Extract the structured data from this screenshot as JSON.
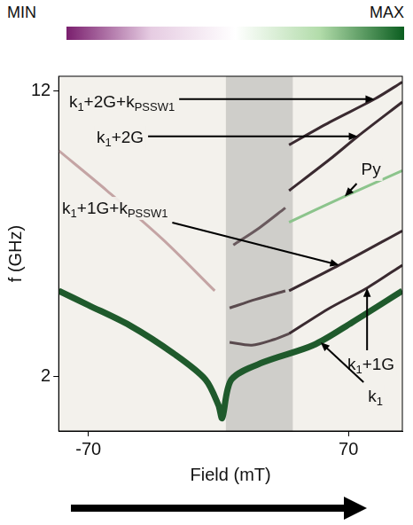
{
  "chart_data": {
    "type": "line",
    "colorbar": {
      "labels": [
        "MIN",
        "MAX"
      ],
      "colors": [
        "#7a1f6e",
        "#e6cce2",
        "#ffffff",
        "#b2dcaa",
        "#0b5e20"
      ]
    },
    "x_label": "Field (mT)",
    "y_label": "f (GHz)",
    "xlim": [
      -86,
      99
    ],
    "xticks": [
      -70,
      70
    ],
    "ylim": [
      0.1,
      12.5
    ],
    "yticks": [
      2,
      12
    ],
    "grid": false,
    "shaded_x": [
      4,
      40
    ],
    "series": [
      {
        "color": "#1f5a2c",
        "x": [
          -86,
          -70,
          -48,
          -24,
          -7,
          0,
          2,
          7,
          24,
          51,
          72,
          99
        ],
        "values": [
          5.0,
          4.5,
          3.8,
          2.8,
          1.9,
          1.0,
          0.55,
          1.9,
          2.5,
          3.1,
          3.9,
          5.0
        ]
      },
      {
        "color": "#3a2a30",
        "x": [
          38,
          60,
          80,
          99
        ],
        "values": [
          3.5,
          4.4,
          5.1,
          5.9
        ]
      },
      {
        "color": "#3a2a30",
        "x": [
          38,
          65,
          99
        ],
        "values": [
          5.0,
          5.9,
          7.1
        ]
      },
      {
        "color": "#8cc48c",
        "x": [
          38,
          68,
          99
        ],
        "values": [
          7.4,
          8.3,
          9.2
        ]
      },
      {
        "color": "#3a2a30",
        "x": [
          38,
          60,
          75,
          99
        ],
        "values": [
          8.5,
          9.6,
          10.4,
          11.6
        ]
      },
      {
        "color": "#3a2a30",
        "x": [
          38,
          60,
          84,
          99
        ],
        "values": [
          10.1,
          10.9,
          11.7,
          12.3
        ]
      },
      {
        "color": "#c4a4a4",
        "x": [
          -86,
          -60,
          -30,
          -2
        ],
        "values": [
          9.9,
          8.5,
          6.8,
          5.0
        ]
      },
      {
        "color": "#5a4a4e",
        "x": [
          6,
          18,
          30,
          38
        ],
        "values": [
          3.2,
          3.1,
          3.3,
          3.5
        ]
      },
      {
        "color": "#5a4a4e",
        "x": [
          6,
          20,
          36
        ],
        "values": [
          4.4,
          4.7,
          5.0
        ]
      },
      {
        "color": "#6a5a5e",
        "x": [
          8,
          22,
          36
        ],
        "values": [
          6.6,
          7.2,
          7.9
        ]
      }
    ],
    "annotations": [
      {
        "text": "k1+2G+kPSSW1",
        "arrow_to": [
          84,
          11.7
        ]
      },
      {
        "text": "k1+2G",
        "arrow_to": [
          75,
          10.4
        ]
      },
      {
        "text": "k1+1G+kPSSW1",
        "arrow_to": [
          65,
          5.9
        ]
      },
      {
        "text": "Py",
        "arrow_to": [
          68,
          8.3
        ]
      },
      {
        "text": "k1+1G",
        "arrow_to": [
          80,
          5.1
        ]
      },
      {
        "text": "k1",
        "arrow_to": [
          55,
          3.2
        ]
      }
    ]
  }
}
